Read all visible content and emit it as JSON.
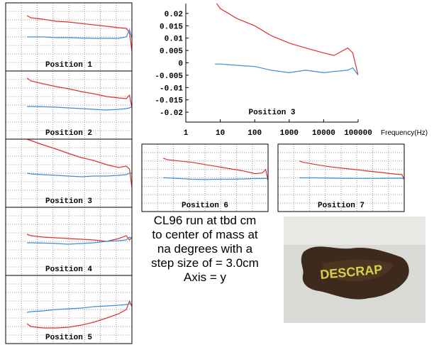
{
  "chart_data": [
    {
      "type": "line",
      "title": "Position 1",
      "xscale": "log",
      "xlim": [
        1,
        100000
      ],
      "ylim": [
        -0.024,
        0.024
      ],
      "grid": true,
      "x": [
        7,
        10,
        30,
        100,
        300,
        1000,
        3000,
        10000,
        30000,
        60000,
        80000,
        100000
      ],
      "series": [
        {
          "color": "#e03030",
          "values": [
            0.015,
            0.0135,
            0.0125,
            0.011,
            0.0105,
            0.0095,
            0.0085,
            0.0075,
            0.0065,
            0.006,
            0.003,
            -0.01
          ]
        },
        {
          "color": "#3a8fd8",
          "values": [
            0.0,
            0.0,
            0.0,
            -0.0005,
            -0.0005,
            -0.0008,
            -0.001,
            -0.001,
            -0.001,
            0.0,
            0.005,
            -0.001
          ]
        }
      ]
    },
    {
      "type": "line",
      "title": "Position 2",
      "xscale": "log",
      "xlim": [
        1,
        100000
      ],
      "ylim": [
        -0.024,
        0.024
      ],
      "grid": true,
      "x": [
        7,
        10,
        30,
        100,
        300,
        1000,
        3000,
        10000,
        30000,
        60000,
        80000,
        100000
      ],
      "series": [
        {
          "color": "#e03030",
          "values": [
            0.019,
            0.017,
            0.015,
            0.013,
            0.0115,
            0.0095,
            0.008,
            0.006,
            0.005,
            0.0045,
            0.007,
            -0.002
          ]
        },
        {
          "color": "#3a8fd8",
          "values": [
            -0.001,
            -0.001,
            -0.0012,
            -0.0015,
            -0.002,
            -0.0025,
            -0.003,
            -0.0035,
            -0.003,
            -0.0025,
            -0.002,
            -0.001
          ]
        }
      ]
    },
    {
      "type": "line",
      "title": "Position 3",
      "xscale": "log",
      "xlim": [
        1,
        100000
      ],
      "ylim": [
        -0.024,
        0.024
      ],
      "grid": true,
      "x": [
        7,
        10,
        30,
        100,
        300,
        1000,
        3000,
        10000,
        30000,
        60000,
        80000,
        100000
      ],
      "series": [
        {
          "color": "#e03030",
          "values": [
            0.024,
            0.023,
            0.02,
            0.017,
            0.014,
            0.011,
            0.009,
            0.006,
            0.004,
            0.005,
            0.003,
            -0.01
          ]
        },
        {
          "color": "#3a8fd8",
          "values": [
            0.0,
            -0.0005,
            -0.001,
            -0.0015,
            -0.002,
            -0.0025,
            -0.002,
            -0.002,
            -0.0015,
            -0.001,
            0.0,
            0.0
          ]
        }
      ]
    },
    {
      "type": "line",
      "title": "Position 4",
      "xscale": "log",
      "xlim": [
        1,
        100000
      ],
      "ylim": [
        -0.024,
        0.024
      ],
      "grid": true,
      "x": [
        7,
        10,
        30,
        100,
        300,
        1000,
        3000,
        10000,
        30000,
        60000,
        80000,
        100000
      ],
      "series": [
        {
          "color": "#e03030",
          "values": [
            0.005,
            0.004,
            0.003,
            0.0025,
            0.002,
            0.0015,
            0.001,
            0.0,
            0.002,
            0.004,
            0.001,
            0.003
          ]
        },
        {
          "color": "#3a8fd8",
          "values": [
            -0.001,
            -0.001,
            -0.0012,
            -0.0015,
            -0.002,
            -0.0015,
            -0.001,
            0.0,
            0.0005,
            0.001,
            0.003,
            0.002
          ]
        }
      ]
    },
    {
      "type": "line",
      "title": "Position 5",
      "xscale": "log",
      "xlim": [
        1,
        100000
      ],
      "ylim": [
        -0.024,
        0.024
      ],
      "grid": true,
      "x": [
        7,
        10,
        30,
        100,
        300,
        1000,
        3000,
        10000,
        30000,
        60000,
        80000,
        100000
      ],
      "series": [
        {
          "color": "#e03030",
          "values": [
            -0.01,
            -0.012,
            -0.013,
            -0.013,
            -0.0125,
            -0.011,
            -0.009,
            -0.006,
            -0.003,
            0.0,
            0.006,
            0.002
          ]
        },
        {
          "color": "#3a8fd8",
          "values": [
            -0.002,
            -0.0015,
            -0.001,
            0.0,
            0.0005,
            0.001,
            0.002,
            0.0025,
            0.003,
            0.0035,
            0.004,
            0.004
          ]
        }
      ]
    },
    {
      "type": "line",
      "title": "Position 3",
      "xscale": "log",
      "xlabel": "Frequency(Hz)",
      "xlim": [
        1,
        100000
      ],
      "ylim": [
        -0.024,
        0.024
      ],
      "grid": false,
      "xticks": [
        1,
        10,
        100,
        1000,
        10000,
        100000
      ],
      "yticks": [
        0.02,
        0.015,
        0.01,
        0.005,
        0,
        -0.005,
        -0.01,
        -0.015,
        -0.02
      ],
      "x": [
        7,
        10,
        30,
        100,
        300,
        1000,
        3000,
        10000,
        20000,
        50000,
        70000,
        100000
      ],
      "series": [
        {
          "color": "#e03030",
          "values": [
            0.025,
            0.022,
            0.018,
            0.015,
            0.011,
            0.008,
            0.006,
            0.004,
            0.003,
            0.006,
            0.004,
            -0.005
          ]
        },
        {
          "color": "#3a8fd8",
          "values": [
            -0.0005,
            -0.0005,
            -0.001,
            -0.0015,
            -0.003,
            -0.004,
            -0.003,
            -0.004,
            -0.0035,
            -0.003,
            -0.002,
            -0.005
          ]
        }
      ]
    },
    {
      "type": "line",
      "title": "Position 6",
      "xscale": "log",
      "xlim": [
        1,
        100000
      ],
      "ylim": [
        -0.024,
        0.024
      ],
      "grid": true,
      "x": [
        7,
        10,
        30,
        100,
        300,
        1000,
        3000,
        10000,
        30000,
        60000,
        80000,
        100000
      ],
      "series": [
        {
          "color": "#e03030",
          "values": [
            0.014,
            0.013,
            0.012,
            0.011,
            0.0095,
            0.008,
            0.0065,
            0.005,
            0.003,
            0.0035,
            0.006,
            -0.002
          ]
        },
        {
          "color": "#3a8fd8",
          "values": [
            0.0,
            0.0,
            -0.0005,
            -0.001,
            -0.0012,
            -0.001,
            -0.001,
            -0.0008,
            -0.0005,
            -0.0005,
            -0.0003,
            -0.001
          ]
        }
      ]
    },
    {
      "type": "line",
      "title": "Position 7",
      "xscale": "log",
      "xlim": [
        1,
        100000
      ],
      "ylim": [
        -0.024,
        0.024
      ],
      "grid": true,
      "x": [
        7,
        10,
        30,
        100,
        300,
        1000,
        3000,
        10000,
        30000,
        60000,
        80000,
        100000
      ],
      "series": [
        {
          "color": "#e03030",
          "values": [
            0.012,
            0.011,
            0.0095,
            0.008,
            0.007,
            0.006,
            0.005,
            0.004,
            0.003,
            0.0025,
            0.0025,
            -0.001
          ]
        },
        {
          "color": "#3a8fd8",
          "values": [
            0.0,
            0.0,
            0.0,
            -0.0002,
            -0.0003,
            -0.0004,
            -0.0004,
            -0.0004,
            -0.0003,
            -0.0003,
            -0.0002,
            -0.001
          ]
        }
      ]
    }
  ],
  "description": {
    "lines": [
      "CL96 run at tbd cm",
      "to center of mass at",
      "na degrees with a",
      "step size of = 3.0cm",
      "Axis = y"
    ]
  },
  "photo": {
    "label": "DESCRAP"
  }
}
